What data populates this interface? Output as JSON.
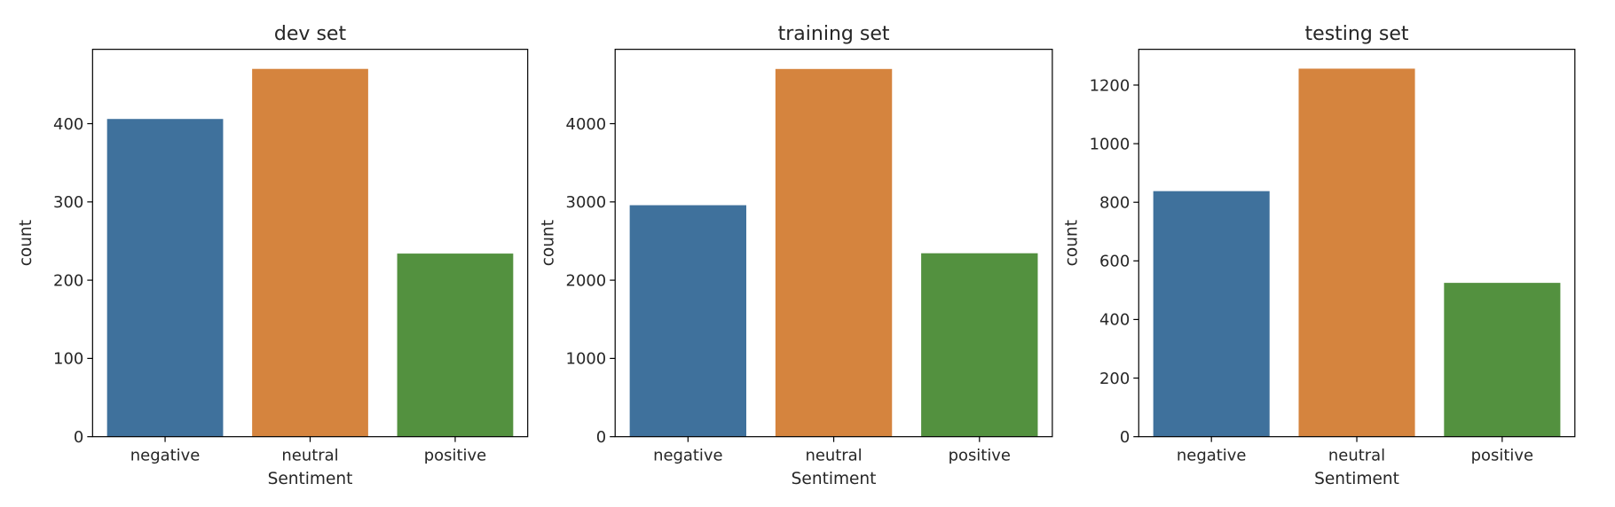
{
  "chart_data": [
    {
      "type": "bar",
      "title": "dev set",
      "xlabel": "Sentiment",
      "ylabel": "count",
      "categories": [
        "negative",
        "neutral",
        "positive"
      ],
      "values": [
        406,
        470,
        234
      ],
      "ylim": [
        0,
        495
      ],
      "yticks": [
        0,
        100,
        200,
        300,
        400
      ],
      "colors": [
        "#3F719C",
        "#D5843E",
        "#53913F"
      ],
      "grid": false
    },
    {
      "type": "bar",
      "title": "training set",
      "xlabel": "Sentiment",
      "ylabel": "count",
      "categories": [
        "negative",
        "neutral",
        "positive"
      ],
      "values": [
        2958,
        4699,
        2344
      ],
      "ylim": [
        0,
        4950
      ],
      "yticks": [
        0,
        1000,
        2000,
        3000,
        4000
      ],
      "colors": [
        "#3F719C",
        "#D5843E",
        "#53913F"
      ],
      "grid": false
    },
    {
      "type": "bar",
      "title": "testing set",
      "xlabel": "Sentiment",
      "ylabel": "count",
      "categories": [
        "negative",
        "neutral",
        "positive"
      ],
      "values": [
        838,
        1256,
        525
      ],
      "ylim": [
        0,
        1322
      ],
      "yticks": [
        0,
        200,
        400,
        600,
        800,
        1000,
        1200
      ],
      "colors": [
        "#3F719C",
        "#D5843E",
        "#53913F"
      ],
      "grid": false
    }
  ]
}
